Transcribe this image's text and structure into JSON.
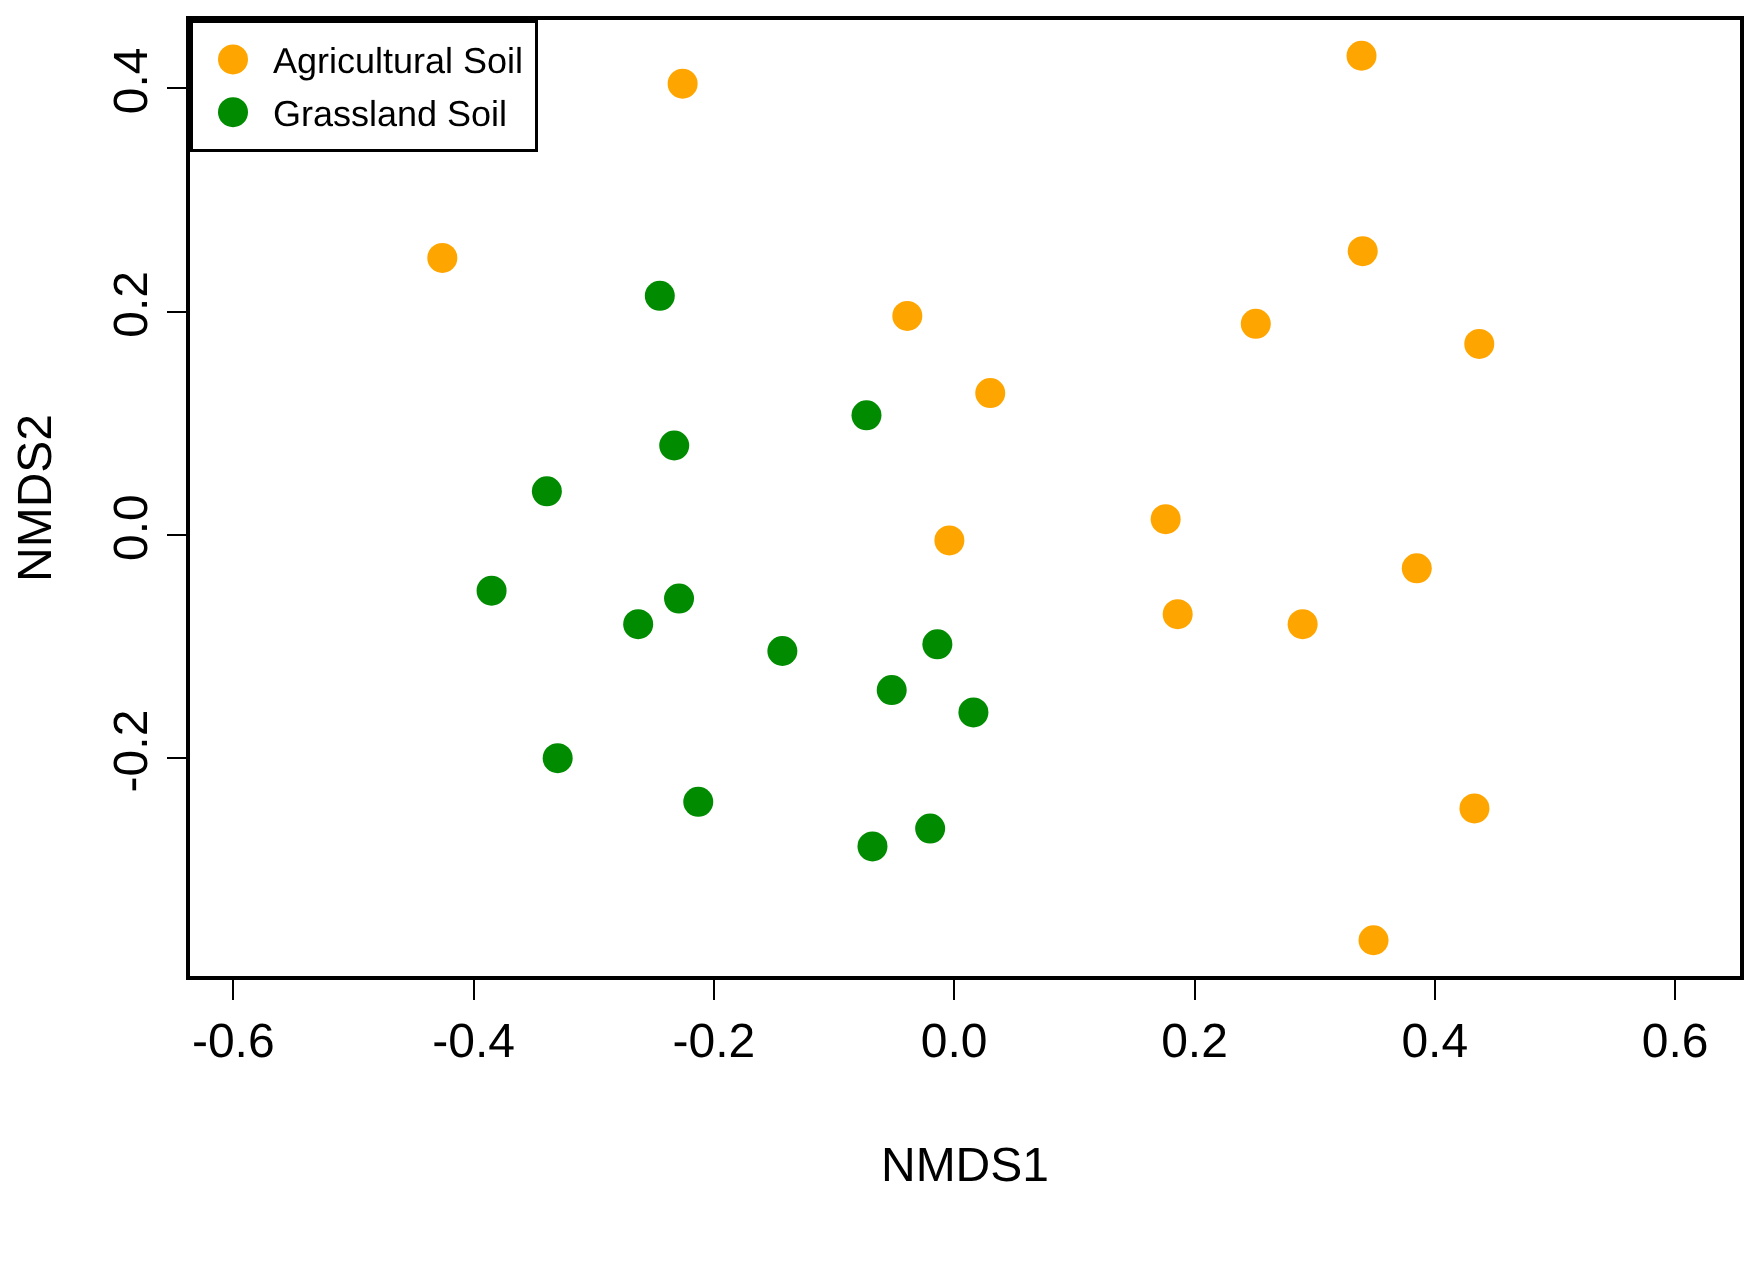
{
  "chart_data": {
    "type": "scatter",
    "xlabel": "NMDS1",
    "ylabel": "NMDS2",
    "xlim": [
      -0.636,
      0.654
    ],
    "ylim": [
      -0.395,
      0.461
    ],
    "xticks": [
      {
        "value": -0.6,
        "label": "-0.6"
      },
      {
        "value": -0.4,
        "label": "-0.4"
      },
      {
        "value": -0.2,
        "label": "-0.2"
      },
      {
        "value": 0,
        "label": "0.0"
      },
      {
        "value": 0.2,
        "label": "0.2"
      },
      {
        "value": 0.4,
        "label": "0.4"
      },
      {
        "value": 0.6,
        "label": "0.6"
      }
    ],
    "yticks": [
      {
        "value": -0.2,
        "label": "-0.2"
      },
      {
        "value": 0,
        "label": "0.0"
      },
      {
        "value": 0.2,
        "label": "0.2"
      },
      {
        "value": 0.4,
        "label": "0.4"
      }
    ],
    "legend": "top left",
    "marker": "circle",
    "series": [
      {
        "name": "Agricultural Soil",
        "color": "#ffa500",
        "x": [
          -0.226,
          -0.426,
          -0.039,
          0.03,
          -0.004,
          0.339,
          0.34,
          0.251,
          0.437,
          0.176,
          0.186,
          0.29,
          0.385,
          0.433,
          0.349
        ],
        "values": [
          0.404,
          0.248,
          0.196,
          0.127,
          -0.005,
          0.429,
          0.254,
          0.189,
          0.171,
          0.014,
          -0.071,
          -0.08,
          -0.03,
          -0.245,
          -0.363
        ]
      },
      {
        "name": "Grassland Soil",
        "color": "#008b00",
        "x": [
          -0.245,
          -0.233,
          -0.073,
          -0.339,
          -0.385,
          -0.263,
          -0.229,
          -0.143,
          -0.052,
          -0.014,
          0.016,
          -0.33,
          -0.213,
          -0.068,
          -0.02
        ],
        "values": [
          0.214,
          0.08,
          0.107,
          0.039,
          -0.05,
          -0.08,
          -0.057,
          -0.104,
          -0.139,
          -0.098,
          -0.159,
          -0.2,
          -0.239,
          -0.279,
          -0.263
        ]
      }
    ]
  }
}
